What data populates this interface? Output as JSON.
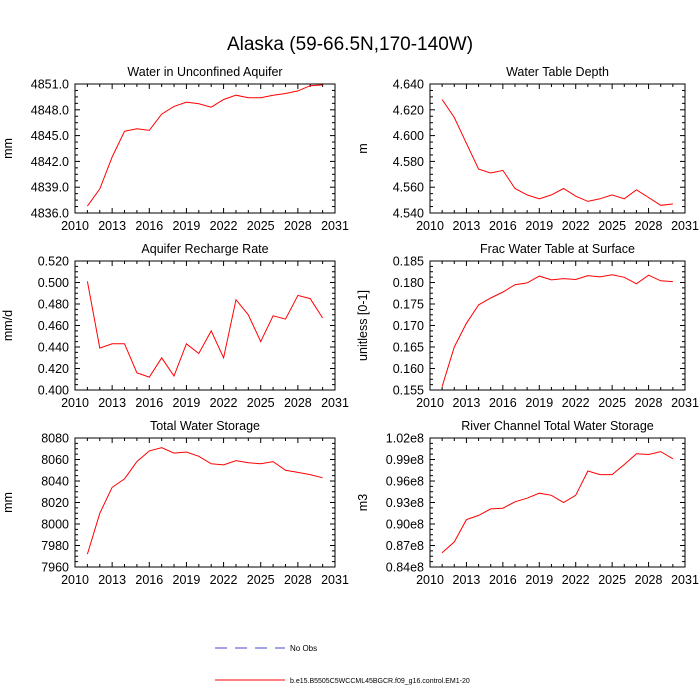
{
  "figure": {
    "title": "Alaska (59-66.5N,170-140W)",
    "line_color": "#ff0000",
    "obs_color": "#4444cc"
  },
  "legend": {
    "obs_label": "No Obs",
    "model_label": "b.e15.B5505C5WCCML45BGCR.f09_g16.control.EM1-20"
  },
  "chart_data": [
    {
      "type": "line",
      "title": "Water in Unconfined Aquifer",
      "ylabel": "mm",
      "xlabel": "",
      "xlim": [
        2010,
        2031
      ],
      "xticks": [
        2010,
        2013,
        2016,
        2019,
        2022,
        2025,
        2028,
        2031
      ],
      "xtick_labels": [
        "2010",
        "2013",
        "2016",
        "2019",
        "2022",
        "2025",
        "2028",
        "2031"
      ],
      "ylim": [
        4836.0,
        4851.0
      ],
      "yticks": [
        4836.0,
        4839.0,
        4842.0,
        4845.0,
        4848.0,
        4851.0
      ],
      "ytick_labels": [
        "4836.0",
        "4839.0",
        "4842.0",
        "4845.0",
        "4848.0",
        "4851.0"
      ],
      "series": [
        {
          "name": "b.e15.B5505C5WCCML45BGCR.f09_g16.control.EM1-20",
          "x": [
            2011,
            2012,
            2013,
            2014,
            2015,
            2016,
            2017,
            2018,
            2019,
            2020,
            2021,
            2022,
            2023,
            2024,
            2025,
            2026,
            2027,
            2028,
            2029,
            2030
          ],
          "values": [
            4836.8,
            4838.8,
            4842.5,
            4845.5,
            4845.8,
            4845.6,
            4847.5,
            4848.4,
            4848.9,
            4848.7,
            4848.3,
            4849.2,
            4849.7,
            4849.4,
            4849.4,
            4849.7,
            4849.9,
            4850.2,
            4850.8,
            4850.9
          ]
        }
      ]
    },
    {
      "type": "line",
      "title": "Water Table Depth",
      "ylabel": "m",
      "xlabel": "",
      "xlim": [
        2010,
        2031
      ],
      "xticks": [
        2010,
        2013,
        2016,
        2019,
        2022,
        2025,
        2028,
        2031
      ],
      "xtick_labels": [
        "2010",
        "2013",
        "2016",
        "2019",
        "2022",
        "2025",
        "2028",
        "2031"
      ],
      "ylim": [
        4.54,
        4.64
      ],
      "yticks": [
        4.54,
        4.56,
        4.58,
        4.6,
        4.62,
        4.64
      ],
      "ytick_labels": [
        "4.540",
        "4.560",
        "4.580",
        "4.600",
        "4.620",
        "4.640"
      ],
      "series": [
        {
          "name": "b.e15.B5505C5WCCML45BGCR.f09_g16.control.EM1-20",
          "x": [
            2011,
            2012,
            2013,
            2014,
            2015,
            2016,
            2017,
            2018,
            2019,
            2020,
            2021,
            2022,
            2023,
            2024,
            2025,
            2026,
            2027,
            2028,
            2029,
            2030
          ],
          "values": [
            4.628,
            4.614,
            4.594,
            4.574,
            4.571,
            4.573,
            4.559,
            4.554,
            4.551,
            4.554,
            4.559,
            4.553,
            4.549,
            4.551,
            4.554,
            4.551,
            4.558,
            4.552,
            4.546,
            4.547
          ]
        }
      ]
    },
    {
      "type": "line",
      "title": "Aquifer Recharge Rate",
      "ylabel": "mm/d",
      "xlabel": "",
      "xlim": [
        2010,
        2031
      ],
      "xticks": [
        2010,
        2013,
        2016,
        2019,
        2022,
        2025,
        2028,
        2031
      ],
      "xtick_labels": [
        "2010",
        "2013",
        "2016",
        "2019",
        "2022",
        "2025",
        "2028",
        "2031"
      ],
      "ylim": [
        0.4,
        0.52
      ],
      "yticks": [
        0.4,
        0.42,
        0.44,
        0.46,
        0.48,
        0.5,
        0.52
      ],
      "ytick_labels": [
        "0.400",
        "0.420",
        "0.440",
        "0.460",
        "0.480",
        "0.500",
        "0.520"
      ],
      "series": [
        {
          "name": "b.e15.B5505C5WCCML45BGCR.f09_g16.control.EM1-20",
          "x": [
            2011,
            2012,
            2013,
            2014,
            2015,
            2016,
            2017,
            2018,
            2019,
            2020,
            2021,
            2022,
            2023,
            2024,
            2025,
            2026,
            2027,
            2028,
            2029,
            2030
          ],
          "values": [
            0.501,
            0.439,
            0.443,
            0.443,
            0.416,
            0.412,
            0.43,
            0.413,
            0.443,
            0.434,
            0.455,
            0.43,
            0.484,
            0.47,
            0.445,
            0.469,
            0.466,
            0.488,
            0.485,
            0.467
          ]
        }
      ]
    },
    {
      "type": "line",
      "title": "Frac Water Table at Surface",
      "ylabel": "unitless [0-1]",
      "xlabel": "",
      "xlim": [
        2010,
        2031
      ],
      "xticks": [
        2010,
        2013,
        2016,
        2019,
        2022,
        2025,
        2028,
        2031
      ],
      "xtick_labels": [
        "2010",
        "2013",
        "2016",
        "2019",
        "2022",
        "2025",
        "2028",
        "2031"
      ],
      "ylim": [
        0.155,
        0.185
      ],
      "yticks": [
        0.155,
        0.16,
        0.165,
        0.17,
        0.175,
        0.18,
        0.185
      ],
      "ytick_labels": [
        "0.155",
        "0.160",
        "0.165",
        "0.170",
        "0.175",
        "0.180",
        "0.185"
      ],
      "series": [
        {
          "name": "b.e15.B5505C5WCCML45BGCR.f09_g16.control.EM1-20",
          "x": [
            2011,
            2012,
            2013,
            2014,
            2015,
            2016,
            2017,
            2018,
            2019,
            2020,
            2021,
            2022,
            2023,
            2024,
            2025,
            2026,
            2027,
            2028,
            2029,
            2030
          ],
          "values": [
            0.1558,
            0.165,
            0.1705,
            0.1748,
            0.1764,
            0.1778,
            0.1795,
            0.1799,
            0.1815,
            0.1806,
            0.1809,
            0.1807,
            0.1816,
            0.1813,
            0.1818,
            0.1812,
            0.1797,
            0.1817,
            0.1804,
            0.1802
          ]
        }
      ]
    },
    {
      "type": "line",
      "title": "Total Water Storage",
      "ylabel": "mm",
      "xlabel": "",
      "xlim": [
        2010,
        2031
      ],
      "xticks": [
        2010,
        2013,
        2016,
        2019,
        2022,
        2025,
        2028,
        2031
      ],
      "xtick_labels": [
        "2010",
        "2013",
        "2016",
        "2019",
        "2022",
        "2025",
        "2028",
        "2031"
      ],
      "ylim": [
        7960,
        8080
      ],
      "yticks": [
        7960,
        7980,
        8000,
        8020,
        8040,
        8060,
        8080
      ],
      "ytick_labels": [
        "7960",
        "7980",
        "8000",
        "8020",
        "8040",
        "8060",
        "8080"
      ],
      "series": [
        {
          "name": "b.e15.B5505C5WCCML45BGCR.f09_g16.control.EM1-20",
          "x": [
            2011,
            2012,
            2013,
            2014,
            2015,
            2016,
            2017,
            2018,
            2019,
            2020,
            2021,
            2022,
            2023,
            2024,
            2025,
            2026,
            2027,
            2028,
            2029,
            2030
          ],
          "values": [
            7972,
            8010,
            8034,
            8042,
            8058,
            8068,
            8071,
            8066,
            8067,
            8063,
            8056,
            8055,
            8059,
            8057,
            8056,
            8058,
            8050,
            8048,
            8046,
            8043
          ]
        }
      ]
    },
    {
      "type": "line",
      "title": "River Channel Total Water Storage",
      "ylabel": "m3",
      "xlabel": "",
      "xlim": [
        2010,
        2031
      ],
      "xticks": [
        2010,
        2013,
        2016,
        2019,
        2022,
        2025,
        2028,
        2031
      ],
      "xtick_labels": [
        "2010",
        "2013",
        "2016",
        "2019",
        "2022",
        "2025",
        "2028",
        "2031"
      ],
      "ylim": [
        84000000.0,
        102000000.0
      ],
      "yticks": [
        84000000.0,
        87000000.0,
        90000000.0,
        93000000.0,
        96000000.0,
        99000000.0,
        102000000.0
      ],
      "ytick_labels": [
        "0.84e8",
        "0.87e8",
        "0.90e8",
        "0.93e8",
        "0.96e8",
        "0.99e8",
        "1.02e8"
      ],
      "series": [
        {
          "name": "b.e15.B5505C5WCCML45BGCR.f09_g16.control.EM1-20",
          "x": [
            2011,
            2012,
            2013,
            2014,
            2015,
            2016,
            2017,
            2018,
            2019,
            2020,
            2021,
            2022,
            2023,
            2024,
            2025,
            2026,
            2027,
            2028,
            2029,
            2030
          ],
          "values": [
            86000000.0,
            87500000.0,
            90600000.0,
            91200000.0,
            92100000.0,
            92200000.0,
            93100000.0,
            93600000.0,
            94300000.0,
            94000000.0,
            93000000.0,
            94000000.0,
            97400000.0,
            96900000.0,
            96900000.0,
            98300000.0,
            99800000.0,
            99700000.0,
            100100000.0,
            99100000.0
          ]
        }
      ]
    }
  ]
}
